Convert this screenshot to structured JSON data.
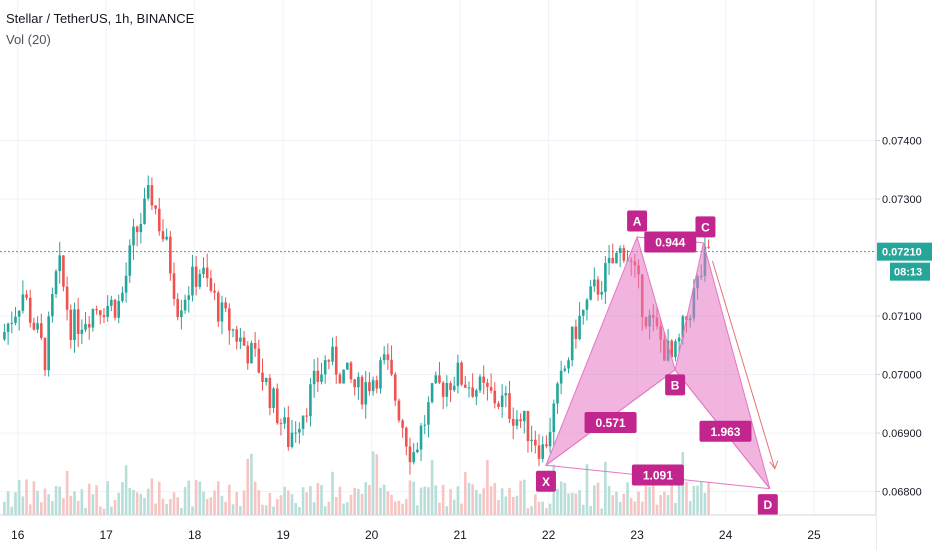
{
  "header": {
    "symbol_line": "Stellar / TetherUS, 1h, BINANCE",
    "volume_line": "Vol (20)"
  },
  "price_tag": {
    "price": "0.07210",
    "countdown": "08:13"
  },
  "colors": {
    "up": "#26a69a",
    "down": "#ef5350",
    "up_vol": "#b7ded9",
    "down_vol": "#f6c4c2",
    "pattern": "#e377c2",
    "pattern_label": "#c2258e",
    "price_line": "#26a69a"
  },
  "chart_data": {
    "type": "candlestick",
    "x_axis": {
      "ticks": [
        "16",
        "17",
        "18",
        "19",
        "20",
        "21",
        "22",
        "23",
        "24",
        "25"
      ],
      "range": [
        15.8,
        25.7
      ]
    },
    "y_axis": {
      "ticks": [
        "0.07400",
        "0.07300",
        "0.07100",
        "0.07000",
        "0.06900",
        "0.06800"
      ],
      "range": [
        0.0676,
        0.0764
      ]
    },
    "current_price": 0.0721,
    "ohlc_anchors": [
      {
        "day": 15.85,
        "price": 0.0706
      },
      {
        "day": 16.1,
        "price": 0.0714
      },
      {
        "day": 16.35,
        "price": 0.0703
      },
      {
        "day": 16.5,
        "price": 0.0719
      },
      {
        "day": 16.65,
        "price": 0.0708
      },
      {
        "day": 16.95,
        "price": 0.0712
      },
      {
        "day": 17.2,
        "price": 0.0712
      },
      {
        "day": 17.35,
        "price": 0.0723
      },
      {
        "day": 17.55,
        "price": 0.0731
      },
      {
        "day": 17.75,
        "price": 0.072
      },
      {
        "day": 17.85,
        "price": 0.0712
      },
      {
        "day": 18.1,
        "price": 0.0718
      },
      {
        "day": 18.35,
        "price": 0.071
      },
      {
        "day": 18.75,
        "price": 0.0702
      },
      {
        "day": 19.1,
        "price": 0.0689
      },
      {
        "day": 19.55,
        "price": 0.0703
      },
      {
        "day": 19.9,
        "price": 0.0697
      },
      {
        "day": 20.2,
        "price": 0.0702
      },
      {
        "day": 20.5,
        "price": 0.0686
      },
      {
        "day": 20.75,
        "price": 0.0697
      },
      {
        "day": 21.0,
        "price": 0.07
      },
      {
        "day": 21.3,
        "price": 0.0697
      },
      {
        "day": 21.55,
        "price": 0.0695
      },
      {
        "day": 21.85,
        "price": 0.069
      },
      {
        "day": 21.98,
        "price": 0.0687
      },
      {
        "day": 22.35,
        "price": 0.0708
      },
      {
        "day": 22.55,
        "price": 0.0714
      },
      {
        "day": 22.9,
        "price": 0.0722
      },
      {
        "day": 23.15,
        "price": 0.071
      },
      {
        "day": 23.45,
        "price": 0.0702
      },
      {
        "day": 23.65,
        "price": 0.0712
      },
      {
        "day": 23.82,
        "price": 0.072
      }
    ],
    "annotations": [
      {
        "type": "label",
        "text": "X",
        "day": 21.97,
        "price": 0.06845
      },
      {
        "type": "label",
        "text": "A",
        "day": 23.0,
        "price": 0.07235
      },
      {
        "type": "label",
        "text": "B",
        "day": 23.43,
        "price": 0.07008
      },
      {
        "type": "label",
        "text": "C",
        "day": 23.75,
        "price": 0.07225
      },
      {
        "type": "label",
        "text": "D",
        "day": 24.5,
        "price": 0.06805
      },
      {
        "type": "ratio",
        "text": "0.571"
      },
      {
        "type": "ratio",
        "text": "0.944"
      },
      {
        "type": "ratio",
        "text": "1.963"
      },
      {
        "type": "ratio",
        "text": "1.091"
      }
    ]
  }
}
